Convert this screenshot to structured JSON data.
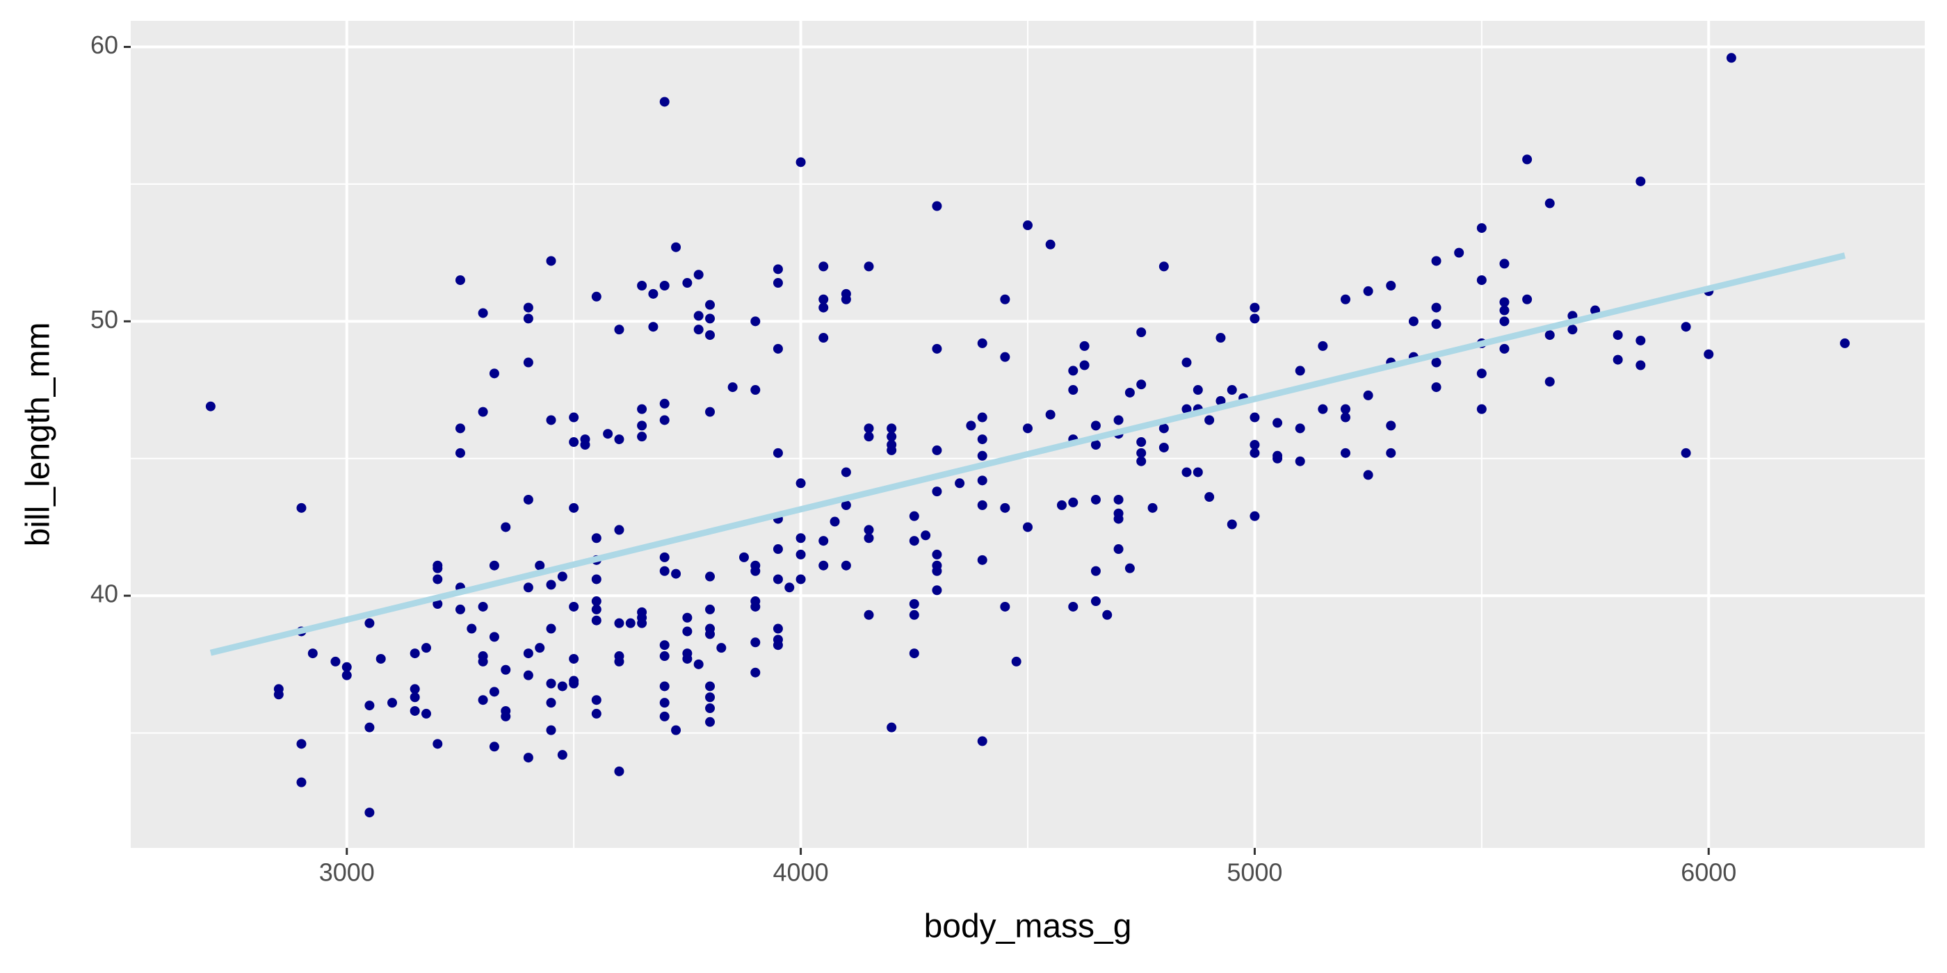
{
  "chart_data": {
    "type": "scatter",
    "x_label": "body_mass_g",
    "y_label": "bill_length_mm",
    "xlim": [
      2524,
      6476
    ],
    "ylim": [
      30.81,
      60.95
    ],
    "xticks": [
      3000,
      4000,
      5000,
      6000
    ],
    "yticks": [
      40,
      50,
      60
    ],
    "grid": true,
    "color": "#00008b",
    "x": [
      2700,
      2850,
      2850,
      2900,
      2900,
      2900,
      2900,
      2925,
      2975,
      3000,
      3000,
      3050,
      3050,
      3050,
      3050,
      3075,
      3100,
      3150,
      3150,
      3150,
      3150,
      3175,
      3175,
      3200,
      3200,
      3200,
      3200,
      3200,
      3250,
      3250,
      3250,
      3250,
      3250,
      3275,
      3300,
      3300,
      3300,
      3300,
      3300,
      3300,
      3325,
      3325,
      3325,
      3325,
      3325,
      3350,
      3350,
      3350,
      3350,
      3400,
      3400,
      3400,
      3400,
      3400,
      3400,
      3400,
      3400,
      3425,
      3425,
      3450,
      3450,
      3450,
      3450,
      3450,
      3450,
      3450,
      3475,
      3475,
      3475,
      3500,
      3500,
      3500,
      3500,
      3500,
      3500,
      3500,
      3525,
      3525,
      3550,
      3550,
      3550,
      3550,
      3550,
      3550,
      3550,
      3550,
      3550,
      3575,
      3600,
      3600,
      3600,
      3600,
      3600,
      3600,
      3600,
      3625,
      3650,
      3650,
      3650,
      3650,
      3650,
      3650,
      3650,
      3675,
      3675,
      3700,
      3700,
      3700,
      3700,
      3700,
      3700,
      3700,
      3700,
      3700,
      3700,
      3700,
      3725,
      3725,
      3725,
      3750,
      3750,
      3750,
      3750,
      3750,
      3775,
      3775,
      3775,
      3775,
      3800,
      3800,
      3800,
      3800,
      3800,
      3800,
      3800,
      3800,
      3800,
      3800,
      3800,
      3800,
      3825,
      3850,
      3875,
      3900,
      3900,
      3900,
      3900,
      3900,
      3900,
      3900,
      3900,
      3950,
      3950,
      3950,
      3950,
      3950,
      3950,
      3950,
      3950,
      3950,
      3950,
      3975,
      4000,
      4000,
      4000,
      4000,
      4000,
      4050,
      4050,
      4050,
      4050,
      4050,
      4050,
      4075,
      4100,
      4100,
      4100,
      4100,
      4100,
      4150,
      4150,
      4150,
      4150,
      4150,
      4150,
      4200,
      4200,
      4200,
      4200,
      4200,
      4250,
      4250,
      4250,
      4250,
      4250,
      4275,
      4300,
      4300,
      4300,
      4300,
      4300,
      4300,
      4300,
      4300,
      4350,
      4375,
      4400,
      4400,
      4400,
      4400,
      4400,
      4400,
      4400,
      4400,
      4450,
      4450,
      4450,
      4450,
      4475,
      4500,
      4500,
      4500,
      4550,
      4550,
      4575,
      4600,
      4600,
      4600,
      4600,
      4600,
      4625,
      4625,
      4650,
      4650,
      4650,
      4650,
      4650,
      4675,
      4700,
      4700,
      4700,
      4700,
      4700,
      4700,
      4725,
      4725,
      4750,
      4750,
      4750,
      4750,
      4750,
      4775,
      4800,
      4800,
      4800,
      4850,
      4850,
      4850,
      4875,
      4875,
      4875,
      4900,
      4900,
      4925,
      4925,
      4950,
      4950,
      4975,
      5000,
      5000,
      5000,
      5000,
      5000,
      5000,
      5050,
      5050,
      5050,
      5100,
      5100,
      5100,
      5150,
      5150,
      5200,
      5200,
      5200,
      5200,
      5250,
      5250,
      5250,
      5300,
      5300,
      5300,
      5300,
      5350,
      5350,
      5400,
      5400,
      5400,
      5400,
      5400,
      5450,
      5500,
      5500,
      5500,
      5500,
      5500,
      5550,
      5550,
      5550,
      5550,
      5550,
      5600,
      5600,
      5650,
      5650,
      5650,
      5700,
      5700,
      5750,
      5800,
      5800,
      5850,
      5850,
      5850,
      5950,
      5950,
      6000,
      6000,
      6050,
      6300
    ],
    "values": [
      46.9,
      36.6,
      36.4,
      43.2,
      38.7,
      34.6,
      33.2,
      37.9,
      37.6,
      37.4,
      37.1,
      39.0,
      36.0,
      35.2,
      32.1,
      37.7,
      36.1,
      37.9,
      36.6,
      36.3,
      35.8,
      38.1,
      35.7,
      41.1,
      41.0,
      40.6,
      39.7,
      34.6,
      51.5,
      46.1,
      45.2,
      40.3,
      39.5,
      38.8,
      50.3,
      46.7,
      39.6,
      37.8,
      37.6,
      36.2,
      48.1,
      41.1,
      38.5,
      36.5,
      34.5,
      42.5,
      37.3,
      35.8,
      35.6,
      50.5,
      50.1,
      48.5,
      43.5,
      40.3,
      37.9,
      37.1,
      34.1,
      38.1,
      41.1,
      52.2,
      46.4,
      40.4,
      38.8,
      36.8,
      36.1,
      35.1,
      40.7,
      36.7,
      34.2,
      46.5,
      45.6,
      43.2,
      39.6,
      37.7,
      36.9,
      36.8,
      45.5,
      45.7,
      42.1,
      41.3,
      40.6,
      39.8,
      39.5,
      39.1,
      36.2,
      35.7,
      50.9,
      45.9,
      49.7,
      45.7,
      42.4,
      39.0,
      37.8,
      37.6,
      33.6,
      39.0,
      51.3,
      46.8,
      46.2,
      45.8,
      39.4,
      39.2,
      39.0,
      51.0,
      49.8,
      58.0,
      51.3,
      47.0,
      46.4,
      41.4,
      40.9,
      38.2,
      37.8,
      36.7,
      36.1,
      35.6,
      52.7,
      40.8,
      35.1,
      51.4,
      39.2,
      38.7,
      37.9,
      37.7,
      51.7,
      50.2,
      49.7,
      37.5,
      50.6,
      50.1,
      49.5,
      46.7,
      40.7,
      39.5,
      38.8,
      38.6,
      36.7,
      36.3,
      35.9,
      35.4,
      38.1,
      47.6,
      41.4,
      50.0,
      47.5,
      41.1,
      40.9,
      39.8,
      39.6,
      38.3,
      37.2,
      51.9,
      51.4,
      49.0,
      45.2,
      42.8,
      41.7,
      40.6,
      38.8,
      38.4,
      38.2,
      40.3,
      55.8,
      44.1,
      42.1,
      41.5,
      40.6,
      52.0,
      50.8,
      50.5,
      49.4,
      42.0,
      41.1,
      42.7,
      44.5,
      43.3,
      51.0,
      50.8,
      41.1,
      52.0,
      46.1,
      45.8,
      42.4,
      42.1,
      39.3,
      46.1,
      45.8,
      45.5,
      45.3,
      35.2,
      42.9,
      42.0,
      39.7,
      39.3,
      37.9,
      42.2,
      54.2,
      49.0,
      45.3,
      43.8,
      41.5,
      41.1,
      40.9,
      40.2,
      44.1,
      46.2,
      49.2,
      46.5,
      45.7,
      45.1,
      44.2,
      43.3,
      41.3,
      34.7,
      50.8,
      48.7,
      43.2,
      39.6,
      37.6,
      53.5,
      46.1,
      42.5,
      52.8,
      46.6,
      43.3,
      48.2,
      47.5,
      45.7,
      43.4,
      39.6,
      49.1,
      48.4,
      46.2,
      45.5,
      43.5,
      40.9,
      39.8,
      39.3,
      46.4,
      45.9,
      43.5,
      43.0,
      42.8,
      41.7,
      47.4,
      41.0,
      49.6,
      47.7,
      45.6,
      45.2,
      44.9,
      43.2,
      52.0,
      46.1,
      45.4,
      48.5,
      46.8,
      44.5,
      47.5,
      46.8,
      44.5,
      46.4,
      43.6,
      49.4,
      47.1,
      47.5,
      42.6,
      47.2,
      50.5,
      50.1,
      46.5,
      45.5,
      45.2,
      42.9,
      46.3,
      45.1,
      45.0,
      48.2,
      46.1,
      44.9,
      49.1,
      46.8,
      50.8,
      46.8,
      46.5,
      45.2,
      51.1,
      47.3,
      44.4,
      51.3,
      48.5,
      46.2,
      45.2,
      50.0,
      48.7,
      52.2,
      50.5,
      49.9,
      48.5,
      47.6,
      52.5,
      53.4,
      51.5,
      49.2,
      48.1,
      46.8,
      52.1,
      50.7,
      50.4,
      50.0,
      49.0,
      55.9,
      50.8,
      54.3,
      49.5,
      47.8,
      50.2,
      49.7,
      50.4,
      49.5,
      48.6,
      55.1,
      49.3,
      48.4,
      49.8,
      45.2,
      48.8,
      51.1,
      59.6,
      49.2
    ],
    "trend_line": {
      "x": [
        2700,
        6300
      ],
      "values": [
        37.92,
        52.4
      ],
      "color": "#add8e6"
    }
  }
}
